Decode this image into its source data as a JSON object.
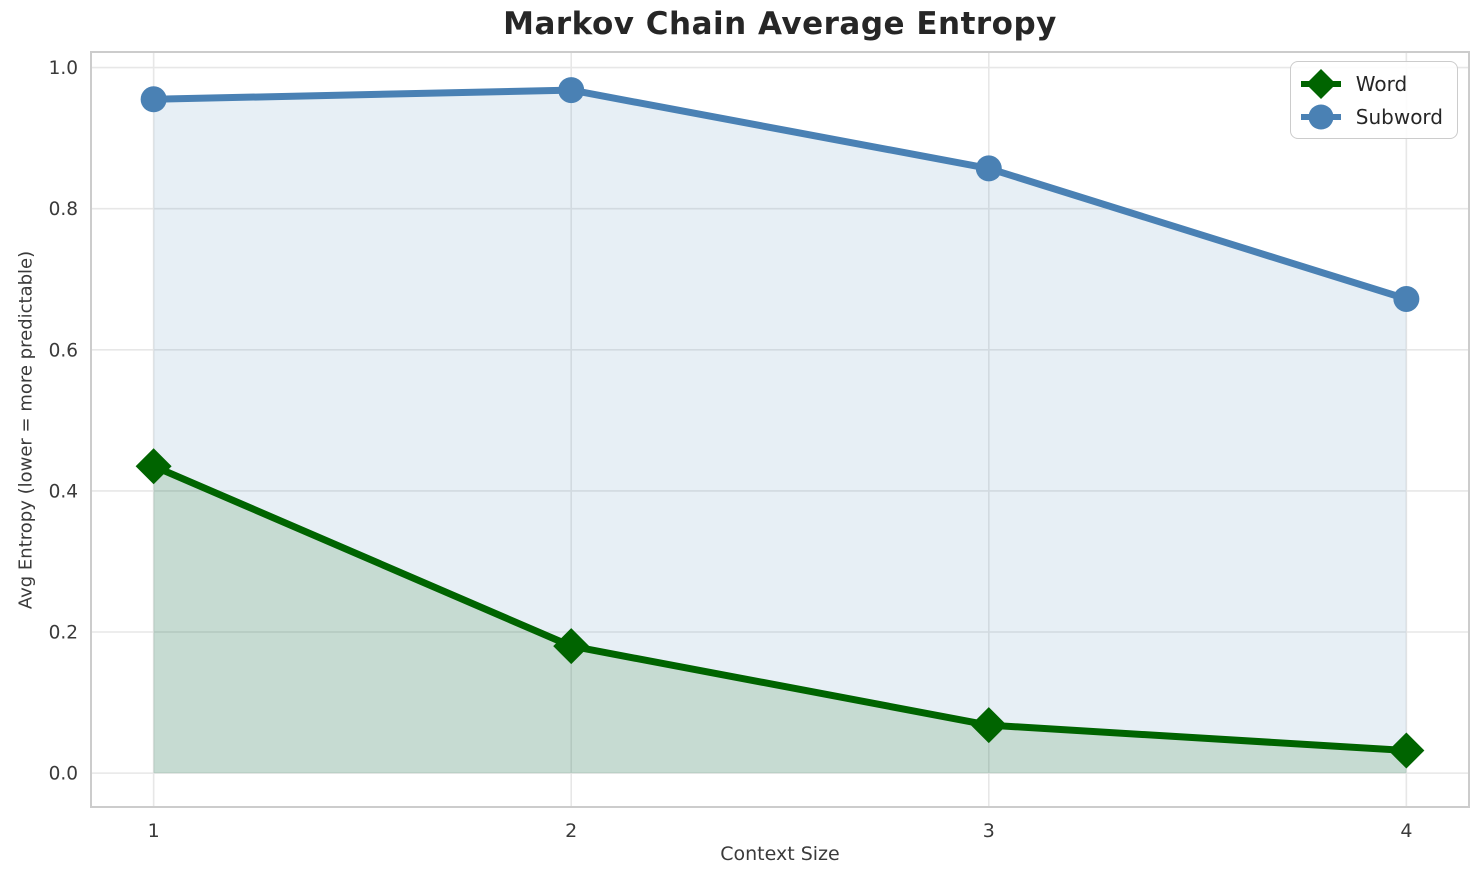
{
  "chart_data": {
    "type": "line",
    "title": "Markov Chain Average Entropy",
    "xlabel": "Context Size",
    "ylabel": "Avg Entropy (lower = more predictable)",
    "x": [
      1,
      2,
      3,
      4
    ],
    "xtick_labels": [
      "1",
      "2",
      "3",
      "4"
    ],
    "yticks": [
      0.0,
      0.2,
      0.4,
      0.6,
      0.8,
      1.0
    ],
    "ytick_labels": [
      "0.0",
      "0.2",
      "0.4",
      "0.6",
      "0.8",
      "1.0"
    ],
    "xlim": [
      0.85,
      4.15
    ],
    "ylim": [
      -0.048,
      1.022
    ],
    "grid": true,
    "grid_color": "#e7e7e7",
    "spine_color": "#cccccc",
    "legend_position": "upper right",
    "series": [
      {
        "name": "Word",
        "marker": "diamond",
        "color": "#006400",
        "fill_color": "#00640024",
        "fill_to_zero": true,
        "values": [
          0.435,
          0.18,
          0.068,
          0.032
        ]
      },
      {
        "name": "Subword",
        "marker": "circle",
        "color": "#4a81b4",
        "fill_color": "#4682b421",
        "fill_to_zero": true,
        "values": [
          0.955,
          0.968,
          0.857,
          0.672
        ]
      }
    ]
  }
}
